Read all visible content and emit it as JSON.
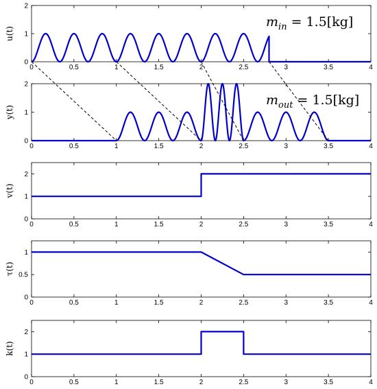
{
  "chart_data": [
    {
      "type": "line",
      "ylabel": "u(t)",
      "xlim": [
        0,
        4
      ],
      "ylim": [
        0,
        2
      ],
      "xticks": [
        "0",
        "0.5",
        "1",
        "1.5",
        "2",
        "2.5",
        "3",
        "3.5",
        "4"
      ],
      "yticks": [
        "0",
        "1",
        "2"
      ],
      "annotation": {
        "var": "m",
        "sub": "in",
        "text": " = 1.5[kg]"
      },
      "series": [
        {
          "segments": [
            {
              "type": "sine2",
              "t0": 0,
              "t1": 2.8,
              "amp": 1,
              "period": 0.3333
            },
            {
              "type": "flat",
              "t0": 2.8,
              "t1": 4,
              "value": 0
            }
          ]
        }
      ]
    },
    {
      "type": "line",
      "ylabel": "y(t)",
      "xlim": [
        0,
        4
      ],
      "ylim": [
        0,
        2
      ],
      "xticks": [
        "0",
        "0.5",
        "1",
        "1.5",
        "2",
        "2.5",
        "3",
        "3.5",
        "4"
      ],
      "yticks": [
        "0",
        "1",
        "2"
      ],
      "annotation": {
        "var": "m",
        "sub": "out",
        "text": " = 1.5[kg]"
      },
      "series": [
        {
          "segments": [
            {
              "type": "flat",
              "t0": 0,
              "t1": 1,
              "value": 0
            },
            {
              "type": "sine2",
              "t0": 1,
              "t1": 2,
              "amp": 1,
              "period": 0.3333
            },
            {
              "type": "sine2",
              "t0": 2,
              "t1": 2.5,
              "amp": 2,
              "period": 0.1667
            },
            {
              "type": "sine2",
              "t0": 2.5,
              "t1": 3.5,
              "amp": 1,
              "period": 0.3333
            },
            {
              "type": "flat",
              "t0": 3.5,
              "t1": 4,
              "value": 0
            }
          ]
        }
      ]
    },
    {
      "type": "line",
      "ylabel": "v(t)",
      "xlim": [
        0,
        4
      ],
      "ylim": [
        0,
        2.5
      ],
      "xticks": [
        "0",
        "0.5",
        "1",
        "1.5",
        "2",
        "2.5",
        "3",
        "3.5",
        "4"
      ],
      "yticks": [
        "0",
        "1",
        "2"
      ],
      "series": [
        {
          "x": [
            0,
            2,
            2,
            4
          ],
          "y": [
            1,
            1,
            2,
            2
          ]
        }
      ]
    },
    {
      "type": "line",
      "ylabel": "τ(t)",
      "xlim": [
        0,
        4
      ],
      "ylim": [
        0,
        1.25
      ],
      "xticks": [
        "0",
        "0.5",
        "1",
        "1.5",
        "2",
        "2.5",
        "3",
        "3.5",
        "4"
      ],
      "yticks": [
        "0",
        "0.5",
        "1"
      ],
      "series": [
        {
          "x": [
            0,
            2,
            2.5,
            4
          ],
          "y": [
            1,
            1,
            0.5,
            0.5
          ]
        }
      ]
    },
    {
      "type": "line",
      "ylabel": "k(t)",
      "xlim": [
        0,
        4
      ],
      "ylim": [
        0,
        2.5
      ],
      "xticks": [
        "0",
        "0.5",
        "1",
        "1.5",
        "2",
        "2.5",
        "3",
        "3.5",
        "4"
      ],
      "yticks": [
        "0",
        "1",
        "2"
      ],
      "series": [
        {
          "x": [
            0,
            2,
            2,
            2.5,
            2.5,
            4
          ],
          "y": [
            1,
            1,
            2,
            2,
            1,
            1
          ]
        }
      ]
    }
  ],
  "delay_lines": [
    {
      "from": [
        0,
        0
      ],
      "to": [
        1,
        0
      ]
    },
    {
      "from": [
        1,
        0
      ],
      "to": [
        2,
        0
      ]
    },
    {
      "from": [
        2,
        0
      ],
      "to": [
        2.5,
        0
      ]
    },
    {
      "from": [
        2.8,
        0
      ],
      "to": [
        3.5,
        0
      ]
    }
  ],
  "colors": {
    "series": "#0000cc",
    "axes": "#000000"
  }
}
